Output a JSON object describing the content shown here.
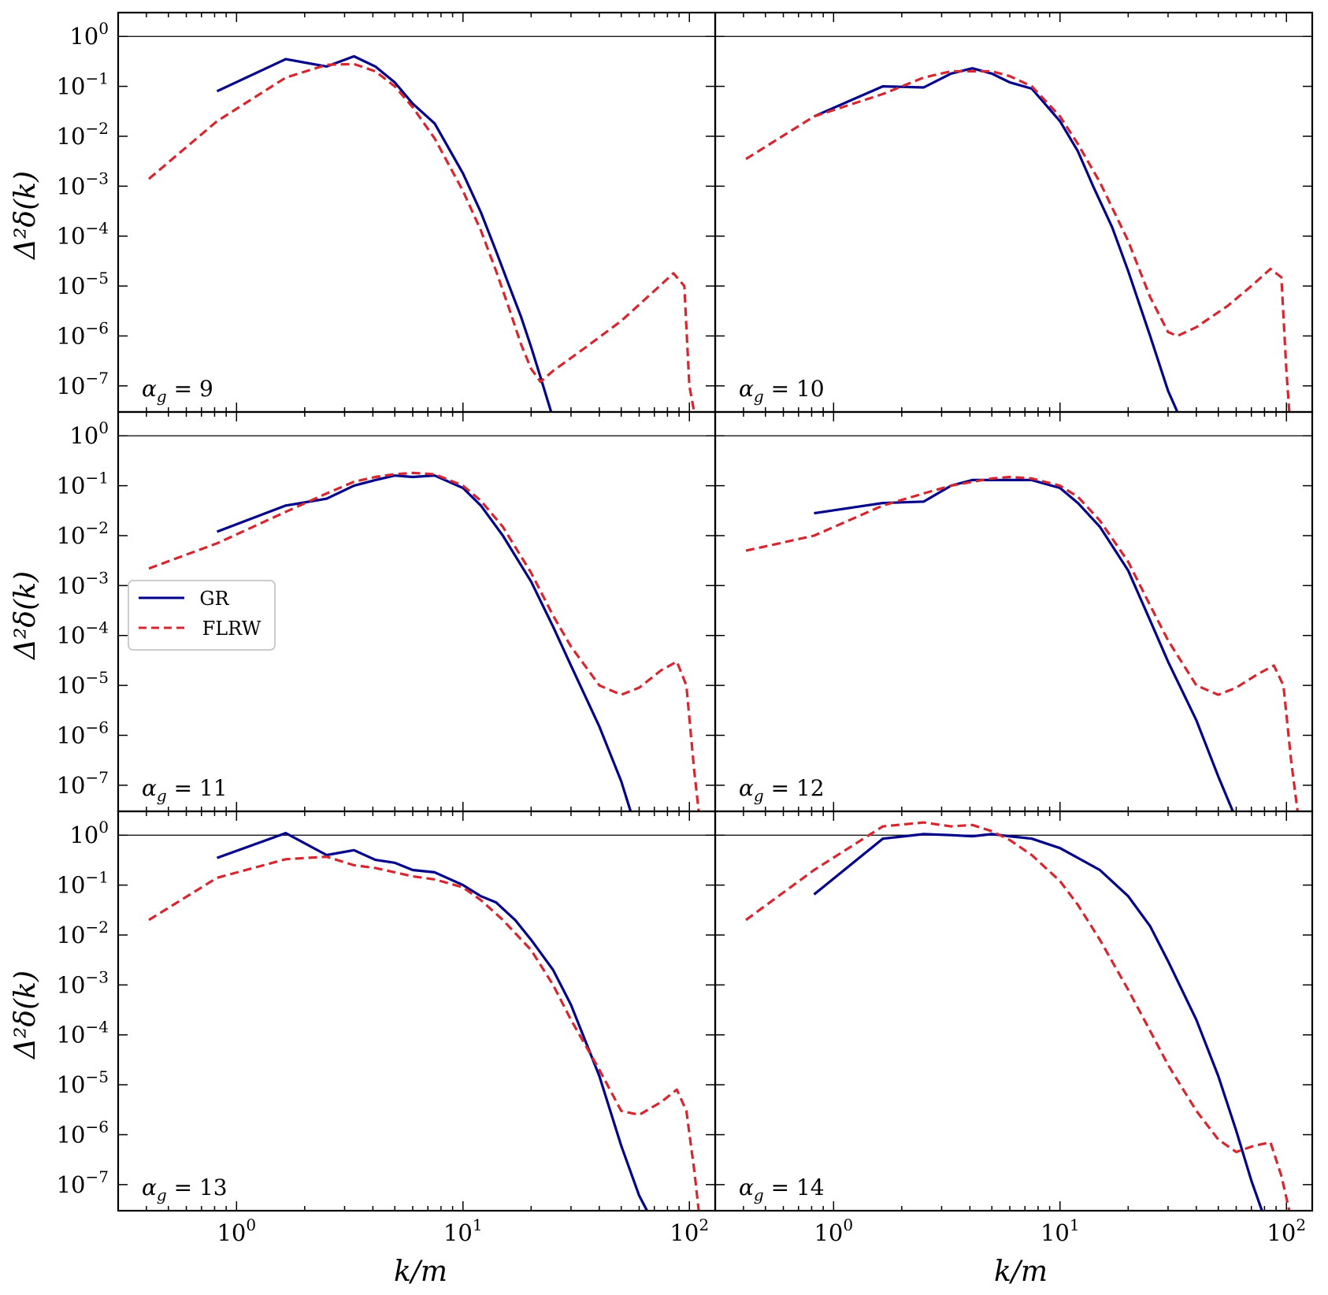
{
  "figure": {
    "xlabel": "k/m",
    "ylabel": "Δ²δ(k)",
    "legend": {
      "placement": "panel-3-left",
      "entries": [
        {
          "label": "GR",
          "color": "#00008b",
          "style": "solid"
        },
        {
          "label": "FLRW",
          "color": "#d62730",
          "style": "dashed"
        }
      ]
    }
  },
  "chart_data": [
    {
      "type": "line",
      "panel_label": "α_g = 9",
      "scale": "log-log",
      "xlim": [
        0.3,
        130
      ],
      "ylim": [
        3e-08,
        3
      ],
      "hline": 1,
      "xticks": [
        {
          "v": 1,
          "label": "10^0"
        },
        {
          "v": 10,
          "label": "10^1"
        },
        {
          "v": 100,
          "label": "10^2"
        }
      ],
      "yticks": [
        {
          "v": 1,
          "label": "10^0"
        },
        {
          "v": 0.1,
          "label": "10^-1"
        },
        {
          "v": 0.01,
          "label": "10^-2"
        },
        {
          "v": 0.001,
          "label": "10^-3"
        },
        {
          "v": 0.0001,
          "label": "10^-4"
        },
        {
          "v": 1e-05,
          "label": "10^-5"
        },
        {
          "v": 1e-06,
          "label": "10^-6"
        },
        {
          "v": 1e-07,
          "label": "10^-7"
        }
      ],
      "series": [
        {
          "name": "GR",
          "x": [
            0.82,
            1.65,
            2.5,
            3.3,
            4.1,
            5.0,
            6.0,
            7.5,
            10,
            12,
            14,
            16,
            18,
            20,
            22,
            24.5
          ],
          "y": [
            0.08,
            0.35,
            0.25,
            0.4,
            0.25,
            0.12,
            0.045,
            0.018,
            0.0018,
            0.0003,
            5e-05,
            1e-05,
            2.5e-06,
            6e-07,
            1.5e-07,
            3e-08
          ]
        },
        {
          "name": "FLRW",
          "x": [
            0.41,
            0.82,
            1.65,
            2.5,
            3.3,
            4.1,
            5.0,
            6.0,
            7.5,
            10,
            12,
            14,
            16,
            18,
            20,
            22,
            25,
            35,
            50,
            70,
            85,
            95,
            100,
            105
          ],
          "y": [
            0.0014,
            0.02,
            0.15,
            0.27,
            0.28,
            0.2,
            0.1,
            0.038,
            0.009,
            0.0008,
            0.00013,
            2e-05,
            3.5e-06,
            7e-07,
            2.2e-07,
            1.2e-07,
            2e-07,
            6e-07,
            2e-06,
            8e-06,
            1.8e-05,
            1e-05,
            1e-07,
            3e-08
          ]
        }
      ]
    },
    {
      "type": "line",
      "panel_label": "α_g = 10",
      "scale": "log-log",
      "xlim": [
        0.3,
        130
      ],
      "ylim": [
        3e-08,
        3
      ],
      "hline": 1,
      "xticks": [
        {
          "v": 1,
          "label": "10^0"
        },
        {
          "v": 10,
          "label": "10^1"
        },
        {
          "v": 100,
          "label": "10^2"
        }
      ],
      "yticks": [],
      "series": [
        {
          "name": "GR",
          "x": [
            0.82,
            1.65,
            2.5,
            3.3,
            4.1,
            5.0,
            6.0,
            7.5,
            10,
            12,
            14,
            17,
            20,
            25,
            30,
            33
          ],
          "y": [
            0.025,
            0.1,
            0.095,
            0.18,
            0.23,
            0.18,
            0.12,
            0.09,
            0.02,
            0.005,
            0.001,
            0.00015,
            2e-05,
            1e-06,
            8e-08,
            3e-08
          ]
        },
        {
          "name": "FLRW",
          "x": [
            0.41,
            0.82,
            1.65,
            2.5,
            3.3,
            4.1,
            5.0,
            6.0,
            7.5,
            10,
            12,
            15,
            20,
            25,
            30,
            33,
            40,
            55,
            70,
            85,
            95,
            100,
            103
          ],
          "y": [
            0.0035,
            0.025,
            0.07,
            0.15,
            0.2,
            0.2,
            0.2,
            0.16,
            0.1,
            0.025,
            0.007,
            0.0012,
            8e-05,
            6e-06,
            1.2e-06,
            1e-06,
            1.5e-06,
            4e-06,
            1e-05,
            2.2e-05,
            1.5e-05,
            2e-07,
            3e-08
          ]
        }
      ]
    },
    {
      "type": "line",
      "panel_label": "α_g = 11",
      "scale": "log-log",
      "xlim": [
        0.3,
        130
      ],
      "ylim": [
        3e-08,
        3
      ],
      "hline": 1,
      "xticks": [
        {
          "v": 1,
          "label": "10^0"
        },
        {
          "v": 10,
          "label": "10^1"
        },
        {
          "v": 100,
          "label": "10^2"
        }
      ],
      "yticks": [
        {
          "v": 1,
          "label": "10^0"
        },
        {
          "v": 0.1,
          "label": "10^-1"
        },
        {
          "v": 0.01,
          "label": "10^-2"
        },
        {
          "v": 0.001,
          "label": "10^-3"
        },
        {
          "v": 0.0001,
          "label": "10^-4"
        },
        {
          "v": 1e-05,
          "label": "10^-5"
        },
        {
          "v": 1e-06,
          "label": "10^-6"
        },
        {
          "v": 1e-07,
          "label": "10^-7"
        }
      ],
      "series": [
        {
          "name": "GR",
          "x": [
            0.82,
            1.65,
            2.5,
            3.3,
            4.1,
            5.0,
            6.0,
            7.5,
            10,
            12,
            15,
            20,
            25,
            30,
            40,
            50,
            55
          ],
          "y": [
            0.012,
            0.04,
            0.055,
            0.1,
            0.13,
            0.16,
            0.15,
            0.16,
            0.09,
            0.04,
            0.01,
            0.0012,
            0.00015,
            2.5e-05,
            1.5e-06,
            1.2e-07,
            3e-08
          ]
        },
        {
          "name": "FLRW",
          "x": [
            0.41,
            0.82,
            1.65,
            2.5,
            3.3,
            4.1,
            5.0,
            6.0,
            7.5,
            10,
            12,
            15,
            20,
            25,
            30,
            40,
            50,
            60,
            75,
            88,
            97,
            105,
            110
          ],
          "y": [
            0.0022,
            0.007,
            0.03,
            0.07,
            0.12,
            0.15,
            0.17,
            0.18,
            0.17,
            0.1,
            0.05,
            0.015,
            0.0018,
            0.00025,
            6e-05,
            1e-05,
            6.5e-06,
            9e-06,
            2e-05,
            3e-05,
            1e-05,
            2e-07,
            3e-08
          ]
        }
      ]
    },
    {
      "type": "line",
      "panel_label": "α_g = 12",
      "scale": "log-log",
      "xlim": [
        0.3,
        130
      ],
      "ylim": [
        3e-08,
        3
      ],
      "hline": 1,
      "xticks": [
        {
          "v": 1,
          "label": "10^0"
        },
        {
          "v": 10,
          "label": "10^1"
        },
        {
          "v": 100,
          "label": "10^2"
        }
      ],
      "yticks": [],
      "series": [
        {
          "name": "GR",
          "x": [
            0.82,
            1.65,
            2.5,
            3.3,
            4.1,
            5.0,
            6.0,
            7.5,
            10,
            12,
            15,
            20,
            25,
            30,
            40,
            50,
            58
          ],
          "y": [
            0.028,
            0.045,
            0.048,
            0.1,
            0.13,
            0.13,
            0.13,
            0.13,
            0.09,
            0.045,
            0.015,
            0.002,
            0.0002,
            3e-05,
            2e-06,
            1.5e-07,
            3e-08
          ]
        },
        {
          "name": "FLRW",
          "x": [
            0.41,
            0.82,
            1.65,
            2.5,
            3.3,
            4.1,
            5.0,
            6.0,
            7.5,
            10,
            12,
            15,
            20,
            25,
            30,
            40,
            50,
            60,
            75,
            88,
            97,
            105,
            112
          ],
          "y": [
            0.005,
            0.01,
            0.04,
            0.07,
            0.1,
            0.12,
            0.14,
            0.15,
            0.14,
            0.1,
            0.06,
            0.02,
            0.003,
            0.0004,
            8e-05,
            1e-05,
            6.5e-06,
            9e-06,
            1.7e-05,
            2.5e-05,
            1e-05,
            3e-07,
            3e-08
          ]
        }
      ]
    },
    {
      "type": "line",
      "panel_label": "α_g = 13",
      "scale": "log-log",
      "xlim": [
        0.3,
        130
      ],
      "ylim": [
        3e-08,
        3
      ],
      "hline": 1,
      "xticks": [
        {
          "v": 1,
          "label": "10^0"
        },
        {
          "v": 10,
          "label": "10^1"
        },
        {
          "v": 100,
          "label": "10^2"
        }
      ],
      "yticks": [
        {
          "v": 1,
          "label": "10^0"
        },
        {
          "v": 0.1,
          "label": "10^-1"
        },
        {
          "v": 0.01,
          "label": "10^-2"
        },
        {
          "v": 0.001,
          "label": "10^-3"
        },
        {
          "v": 0.0001,
          "label": "10^-4"
        },
        {
          "v": 1e-05,
          "label": "10^-5"
        },
        {
          "v": 1e-06,
          "label": "10^-6"
        },
        {
          "v": 1e-07,
          "label": "10^-7"
        }
      ],
      "series": [
        {
          "name": "GR",
          "x": [
            0.82,
            1.65,
            2.5,
            3.3,
            4.1,
            5.0,
            6.0,
            7.5,
            10,
            12,
            14,
            17,
            20,
            25,
            30,
            40,
            50,
            60,
            65
          ],
          "y": [
            0.35,
            1.1,
            0.4,
            0.5,
            0.32,
            0.28,
            0.2,
            0.18,
            0.1,
            0.06,
            0.045,
            0.02,
            0.008,
            0.002,
            0.0004,
            1.5e-05,
            6e-07,
            6e-08,
            3e-08
          ]
        },
        {
          "name": "FLRW",
          "x": [
            0.41,
            0.82,
            1.65,
            2.5,
            3.3,
            4.1,
            5.0,
            6.0,
            7.5,
            10,
            12,
            15,
            20,
            25,
            30,
            40,
            50,
            60,
            75,
            88,
            97,
            105,
            110
          ],
          "y": [
            0.02,
            0.14,
            0.33,
            0.37,
            0.25,
            0.22,
            0.18,
            0.15,
            0.13,
            0.09,
            0.05,
            0.02,
            0.005,
            0.001,
            0.0002,
            2e-05,
            3e-06,
            2.5e-06,
            4.5e-06,
            8e-06,
            3e-06,
            2e-07,
            3e-08
          ]
        }
      ]
    },
    {
      "type": "line",
      "panel_label": "α_g = 14",
      "scale": "log-log",
      "xlim": [
        0.3,
        130
      ],
      "ylim": [
        3e-08,
        3
      ],
      "hline": 1,
      "xticks": [
        {
          "v": 1,
          "label": "10^0"
        },
        {
          "v": 10,
          "label": "10^1"
        },
        {
          "v": 100,
          "label": "10^2"
        }
      ],
      "yticks": [],
      "series": [
        {
          "name": "GR",
          "x": [
            0.82,
            1.65,
            2.5,
            3.3,
            4.1,
            5.0,
            6.0,
            7.5,
            10,
            12,
            15,
            20,
            25,
            30,
            40,
            50,
            60,
            70,
            78
          ],
          "y": [
            0.065,
            0.85,
            1.05,
            1.0,
            0.95,
            1.05,
            0.95,
            0.85,
            0.55,
            0.35,
            0.2,
            0.06,
            0.015,
            0.003,
            0.0002,
            1.5e-05,
            1.2e-06,
            1.2e-07,
            3e-08
          ]
        },
        {
          "name": "FLRW",
          "x": [
            0.41,
            0.82,
            1.65,
            2.5,
            3.3,
            4.1,
            5.0,
            6.0,
            7.5,
            10,
            12,
            15,
            20,
            25,
            30,
            40,
            50,
            60,
            72,
            85,
            95,
            103
          ],
          "y": [
            0.02,
            0.2,
            1.5,
            1.8,
            1.5,
            1.6,
            1.2,
            0.8,
            0.4,
            0.12,
            0.04,
            0.008,
            0.0008,
            0.00012,
            2.5e-05,
            3e-06,
            8e-07,
            4.5e-07,
            6e-07,
            7e-07,
            1.5e-07,
            3e-08
          ]
        }
      ]
    }
  ]
}
